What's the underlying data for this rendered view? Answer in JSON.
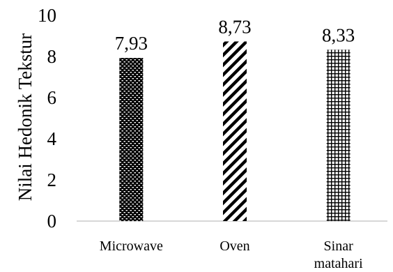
{
  "chart_data": {
    "type": "bar",
    "categories": [
      "Microwave",
      "Oven",
      "Sinar matahari"
    ],
    "values": [
      7.93,
      8.73,
      8.33
    ],
    "data_labels": [
      "7,93",
      "8,73",
      "8,33"
    ],
    "ylabel": "Nilai Hedonik Tekstur",
    "xlabel": "",
    "ylim": [
      0,
      10
    ],
    "yticks": [
      0,
      2,
      4,
      6,
      8,
      10
    ],
    "grid": false,
    "legend": "none",
    "bar_patterns": [
      "brick",
      "diagonal-stripes",
      "grid"
    ],
    "colors": {
      "bar_fill": "#000000",
      "background": "#ffffff",
      "axis": "#bfbfbf"
    }
  }
}
